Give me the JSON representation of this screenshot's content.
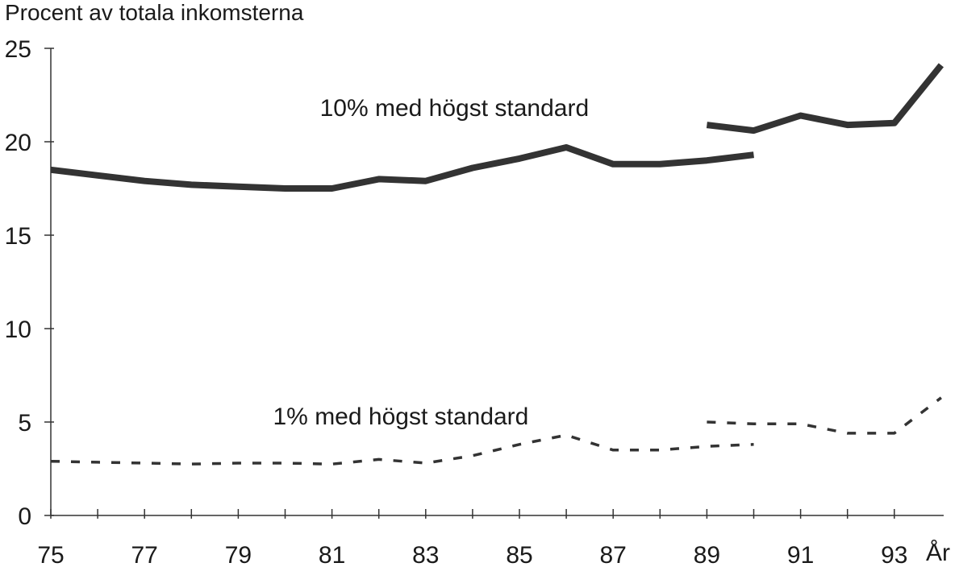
{
  "chart_data": {
    "type": "line",
    "title": "",
    "ylabel": "Procent av totala inkomsterna",
    "xlabel": "År",
    "xlim": [
      1975,
      1994.5
    ],
    "ylim": [
      0,
      25
    ],
    "x_ticks": [
      1975,
      1976,
      1977,
      1978,
      1979,
      1980,
      1981,
      1982,
      1983,
      1984,
      1985,
      1986,
      1987,
      1988,
      1989,
      1990,
      1991,
      1992,
      1993
    ],
    "x_tick_labels": [
      "75",
      "",
      "77",
      "",
      "79",
      "",
      "81",
      "",
      "83",
      "",
      "85",
      "",
      "87",
      "",
      "89",
      "",
      "91",
      "",
      "93"
    ],
    "y_ticks": [
      0,
      5,
      10,
      15,
      20,
      25
    ],
    "y_tick_labels": [
      "0",
      "5",
      "10",
      "15",
      "20",
      "25"
    ],
    "grid": false,
    "series": [
      {
        "name": "10% med högst standard",
        "style": "solid",
        "color": "#333333",
        "segments": [
          {
            "x": [
              1975,
              1976,
              1977,
              1978,
              1979,
              1980,
              1981,
              1982,
              1983,
              1984,
              1985,
              1986,
              1987,
              1988,
              1989,
              1990
            ],
            "y": [
              18.5,
              18.2,
              17.9,
              17.7,
              17.6,
              17.5,
              17.5,
              18.0,
              17.9,
              18.6,
              19.1,
              19.7,
              18.8,
              18.8,
              19.0,
              19.3
            ]
          },
          {
            "x": [
              1989,
              1990,
              1991,
              1992,
              1993,
              1994
            ],
            "y": [
              20.9,
              20.6,
              21.4,
              20.9,
              21.0,
              24.1
            ]
          }
        ]
      },
      {
        "name": "1% med högst standard",
        "style": "dashed",
        "color": "#333333",
        "segments": [
          {
            "x": [
              1975,
              1976,
              1977,
              1978,
              1979,
              1980,
              1981,
              1982,
              1983,
              1984,
              1985,
              1986,
              1987,
              1988,
              1989,
              1990
            ],
            "y": [
              2.9,
              2.85,
              2.8,
              2.75,
              2.8,
              2.8,
              2.75,
              3.0,
              2.8,
              3.2,
              3.8,
              4.3,
              3.5,
              3.5,
              3.7,
              3.8
            ]
          },
          {
            "x": [
              1989,
              1990,
              1991,
              1992,
              1993,
              1994
            ],
            "y": [
              5.0,
              4.9,
              4.9,
              4.4,
              4.4,
              6.3
            ]
          }
        ]
      }
    ],
    "annotations": [
      {
        "text": "10% med högst standard",
        "x": 1981,
        "y": 21.8
      },
      {
        "text": "1% med högst standard",
        "x": 1980,
        "y": 5.3
      }
    ]
  }
}
